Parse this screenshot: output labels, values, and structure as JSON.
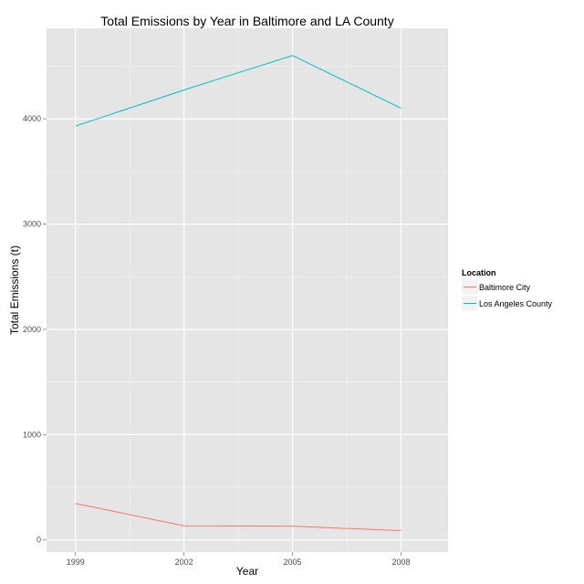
{
  "chart_data": {
    "type": "line",
    "title": "Total Emissions by Year in Baltimore and LA County",
    "xlabel": "Year",
    "ylabel": "Total Emissions (t)",
    "x": [
      1999,
      2002,
      2005,
      2008
    ],
    "x_ticks": [
      "1999",
      "2002",
      "2005",
      "2008"
    ],
    "y_ticks": [
      0,
      1000,
      2000,
      3000,
      4000
    ],
    "y_tick_labels": [
      "0",
      "1000",
      "2000",
      "3000",
      "4000"
    ],
    "xlim": [
      1998.2,
      2009.3
    ],
    "ylim": [
      -115,
      4860
    ],
    "grid": true,
    "legend": {
      "title": "Location",
      "position": "right"
    },
    "series": [
      {
        "name": "Baltimore City",
        "color": "#F8766D",
        "values": [
          346.82,
          134.31,
          130.43,
          88.28
        ]
      },
      {
        "name": "Los Angeles County",
        "color": "#00BFC4",
        "values": [
          3931.12,
          4274.03,
          4601.41,
          4101.32
        ]
      }
    ]
  }
}
